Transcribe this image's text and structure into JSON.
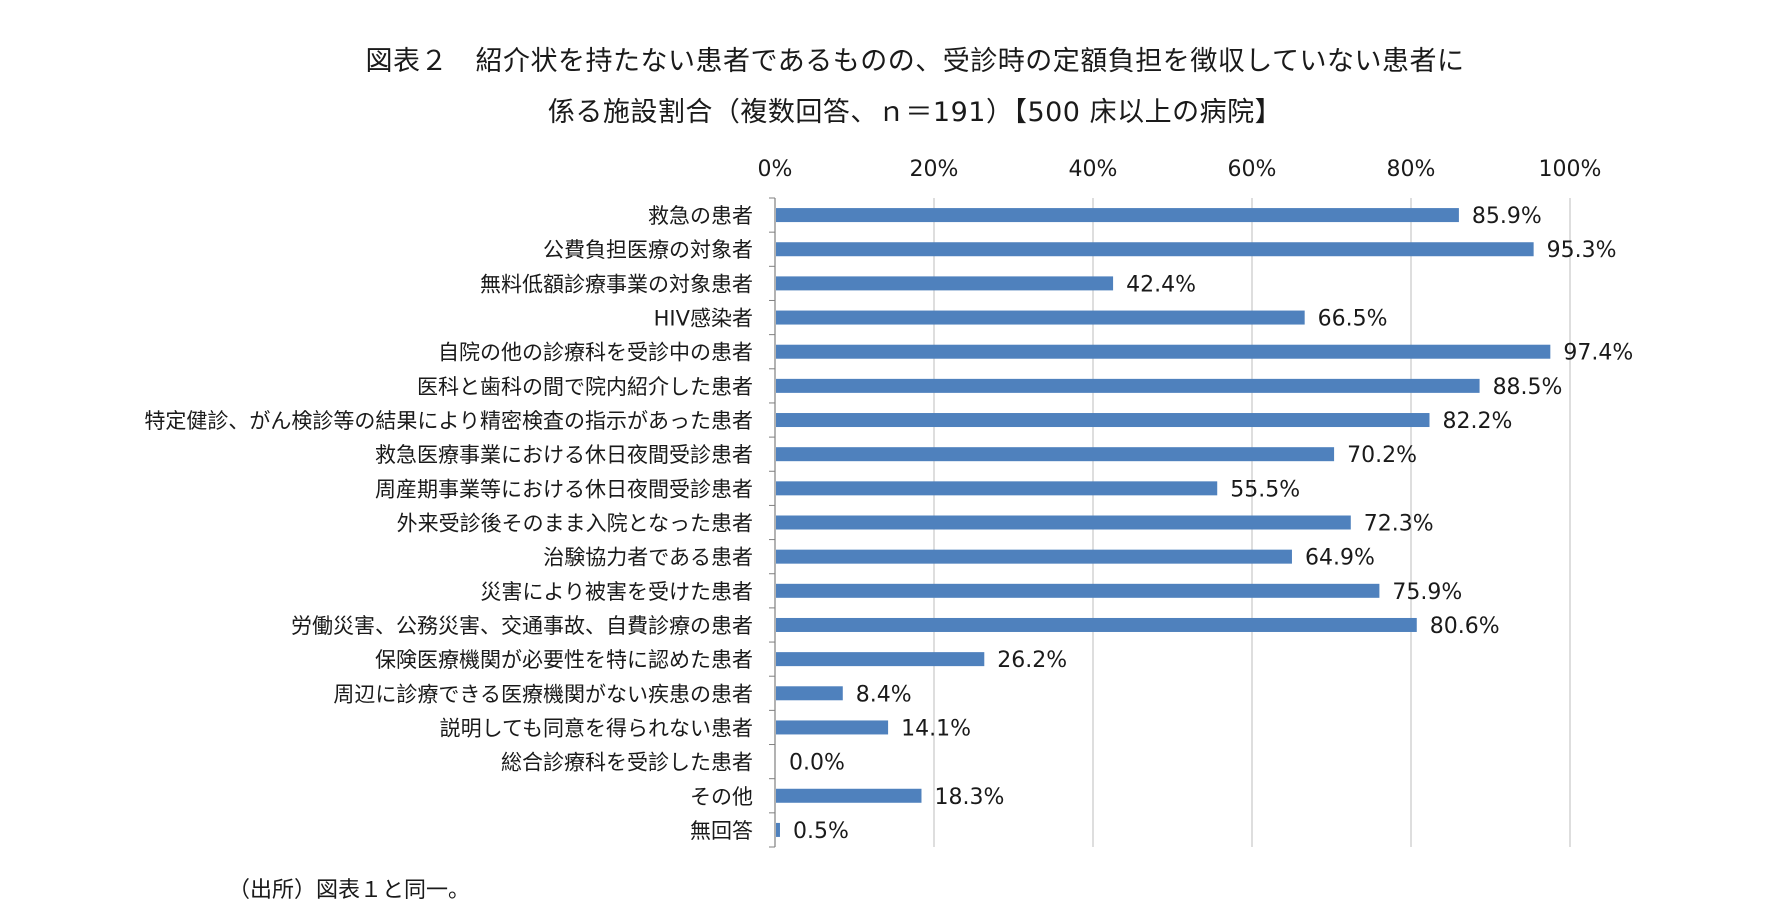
{
  "title_line1": "図表２　紹介状を持たない患者であるものの、受診時の定額負担を徴収していない患者に",
  "title_line2": "係る施設割合（複数回答、ｎ＝191）【500 床以上の病院】",
  "source": "（出所）図表１と同一。",
  "colors": {
    "bar": "#4f81bd",
    "grid": "#c8c8c8",
    "axis": "#808080",
    "text": "#1a1a1a"
  },
  "chart_data": {
    "type": "bar",
    "orientation": "horizontal",
    "xlim": [
      0,
      100
    ],
    "ticks": [
      0,
      20,
      40,
      60,
      80,
      100
    ],
    "tick_labels": [
      "0%",
      "20%",
      "40%",
      "60%",
      "80%",
      "100%"
    ],
    "tick_position": "top",
    "grid": true,
    "categories": [
      "救急の患者",
      "公費負担医療の対象者",
      "無料低額診療事業の対象患者",
      "HIV感染者",
      "自院の他の診療科を受診中の患者",
      "医科と歯科の間で院内紹介した患者",
      "特定健診、がん検診等の結果により精密検査の指示があった患者",
      "救急医療事業における休日夜間受診患者",
      "周産期事業等における休日夜間受診患者",
      "外来受診後そのまま入院となった患者",
      "治験協力者である患者",
      "災害により被害を受けた患者",
      "労働災害、公務災害、交通事故、自費診療の患者",
      "保険医療機関が必要性を特に認めた患者",
      "周辺に診療できる医療機関がない疾患の患者",
      "説明しても同意を得られない患者",
      "総合診療科を受診した患者",
      "その他",
      "無回答"
    ],
    "values": [
      85.9,
      95.3,
      42.4,
      66.5,
      97.4,
      88.5,
      82.2,
      70.2,
      55.5,
      72.3,
      64.9,
      75.9,
      80.6,
      26.2,
      8.4,
      14.1,
      0.0,
      18.3,
      0.5
    ],
    "value_labels": [
      "85.9%",
      "95.3%",
      "42.4%",
      "66.5%",
      "97.4%",
      "88.5%",
      "82.2%",
      "70.2%",
      "55.5%",
      "72.3%",
      "64.9%",
      "75.9%",
      "80.6%",
      "26.2%",
      "8.4%",
      "14.1%",
      "0.0%",
      "18.3%",
      "0.5%"
    ]
  }
}
